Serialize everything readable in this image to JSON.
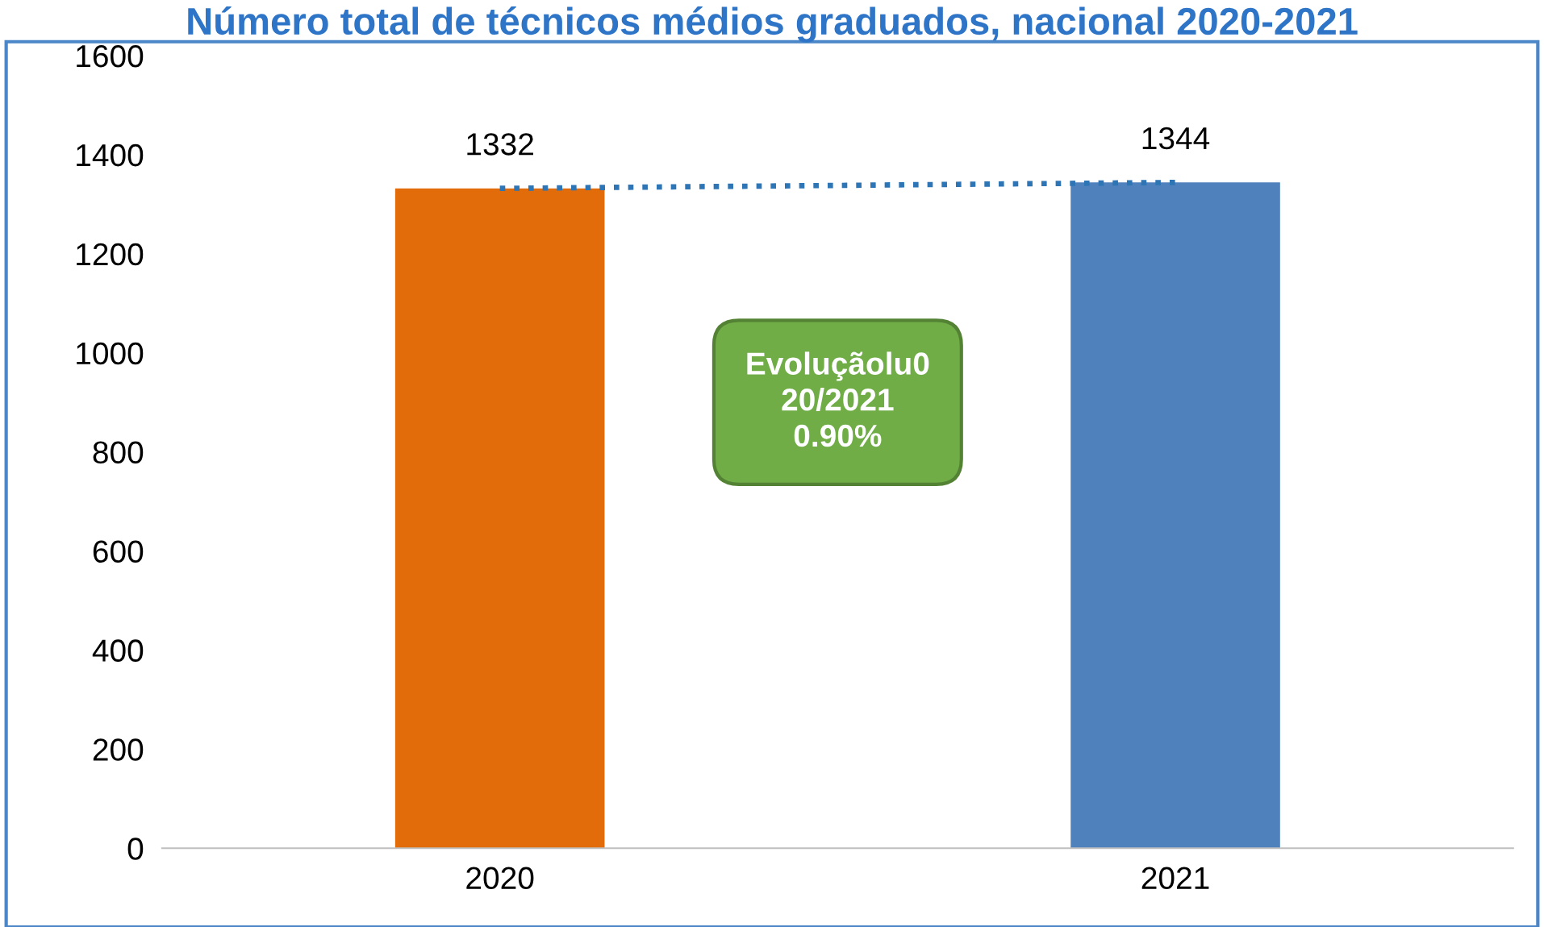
{
  "chart_data": {
    "type": "bar",
    "title": "Número total de técnicos médios graduados, nacional 2020-2021",
    "categories": [
      "2020",
      "2021"
    ],
    "series": [
      {
        "colors": [
          "#e36c0a",
          "#4f81bd"
        ],
        "values": [
          1332,
          1344
        ],
        "data_labels": true
      },
      {
        "type": "line",
        "color": "#2e75b6",
        "line_style": "dotted",
        "marker": "none",
        "values": [
          1332,
          1344
        ]
      }
    ],
    "ylim": [
      0,
      1600
    ],
    "yticks": [
      0,
      200,
      400,
      600,
      800,
      1000,
      1200,
      1400,
      1600
    ],
    "grid": false,
    "legend": false,
    "annotations": [
      "Evoluçãolu0\n20/2021\n0.90%"
    ]
  }
}
